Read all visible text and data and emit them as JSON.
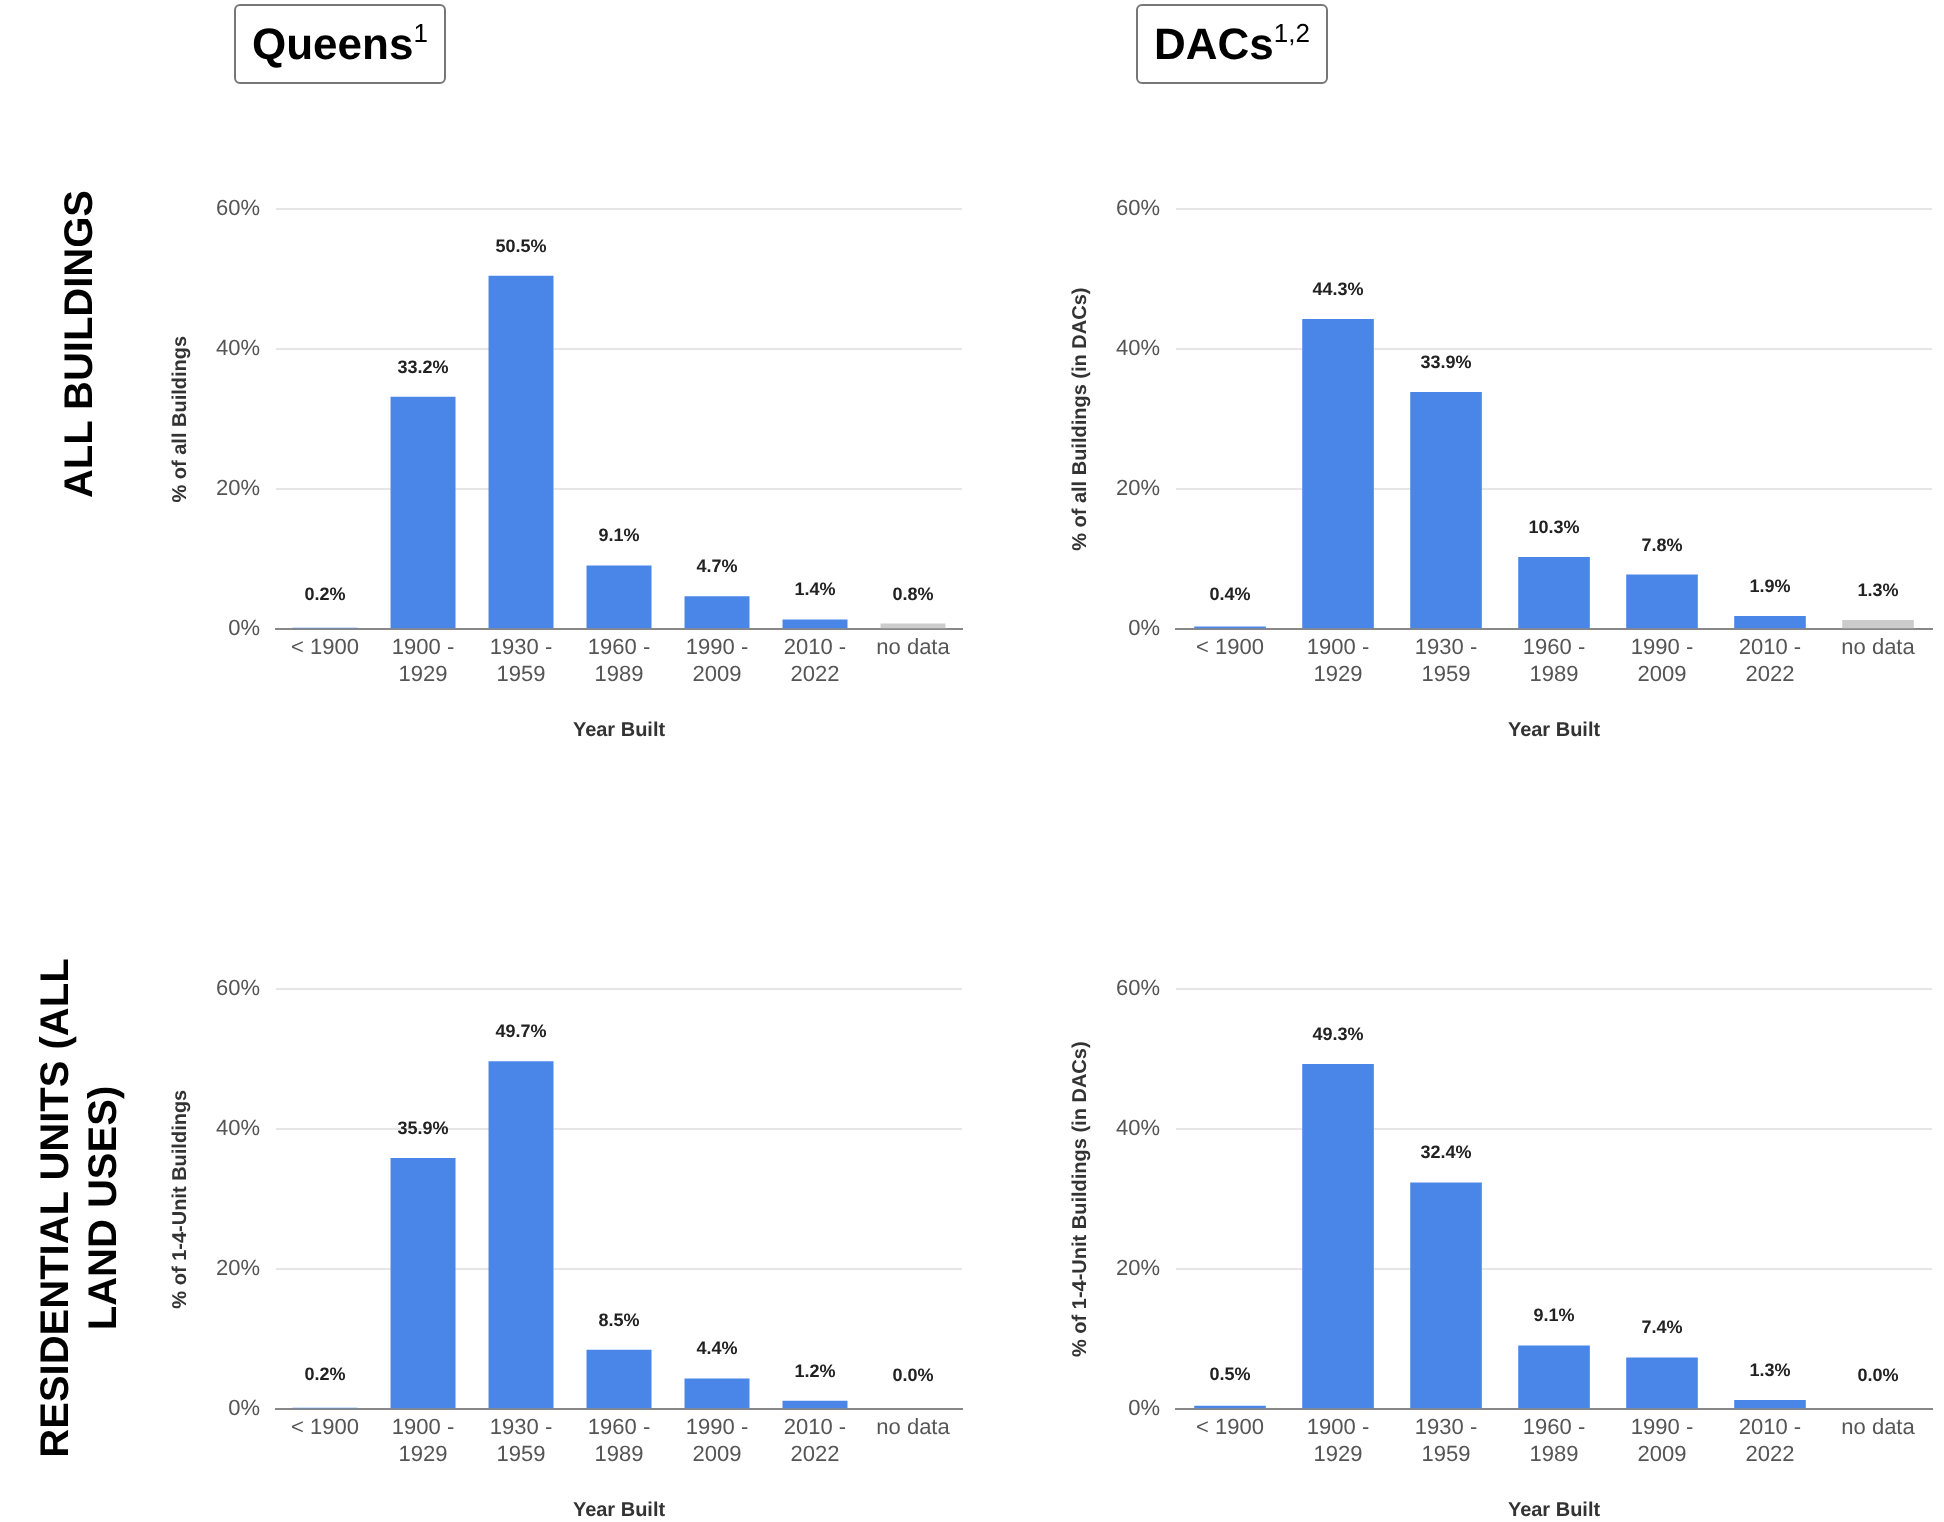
{
  "chart_data": [
    {
      "type": "bar",
      "title": "Queens$^{1}$",
      "subtitle": "ALL BUILDINGS",
      "xlabel": "Year Built",
      "ylabel": "% of all Buildings",
      "categories": [
        "< 1900",
        "1900 - 1929",
        "1930 - 1959",
        "1960 - 1989",
        "1990 - 2009",
        "2010 - 2022",
        "no data"
      ],
      "values": [
        0.2,
        33.2,
        50.5,
        9.1,
        4.7,
        1.4,
        0.8
      ],
      "colors": [
        "#4a86e8",
        "#4a86e8",
        "#4a86e8",
        "#4a86e8",
        "#4a86e8",
        "#4a86e8",
        "#cccccc"
      ],
      "value_labels": [
        "0.2%",
        "33.2%",
        "50.5%",
        "9.1%",
        "4.7%",
        "1.4%",
        "0.8%"
      ],
      "ylim": [
        0,
        60
      ],
      "yticks": [
        {
          "value": 0,
          "label": "0%"
        },
        {
          "value": 20,
          "label": "20%"
        },
        {
          "value": 40,
          "label": "40%"
        },
        {
          "value": 60,
          "label": "60%"
        }
      ],
      "grid": "y"
    },
    {
      "type": "bar",
      "title": "DACs$^{1,2}$",
      "xlabel": "Year Built",
      "ylabel": "% of all Buildings (in DACs)",
      "categories": [
        "< 1900",
        "1900 - 1929",
        "1930 - 1959",
        "1960 - 1989",
        "1990 - 2009",
        "2010 - 2022",
        "no data"
      ],
      "values": [
        0.4,
        44.3,
        33.9,
        10.3,
        7.8,
        1.9,
        1.3
      ],
      "colors": [
        "#4a86e8",
        "#4a86e8",
        "#4a86e8",
        "#4a86e8",
        "#4a86e8",
        "#4a86e8",
        "#cccccc"
      ],
      "value_labels": [
        "0.4%",
        "44.3%",
        "33.9%",
        "10.3%",
        "7.8%",
        "1.9%",
        "1.3%"
      ],
      "ylim": [
        0,
        60
      ],
      "yticks": [
        {
          "value": 0,
          "label": "0%"
        },
        {
          "value": 20,
          "label": "20%"
        },
        {
          "value": 40,
          "label": "40%"
        },
        {
          "value": 60,
          "label": "60%"
        }
      ],
      "grid": "y"
    },
    {
      "type": "bar",
      "subtitle": "RESIDENTIAL UNITS (ALL LAND USES)",
      "xlabel": "Year Built",
      "ylabel": "% of 1-4-Unit Buildings",
      "categories": [
        "< 1900",
        "1900 - 1929",
        "1930 - 1959",
        "1960 - 1989",
        "1990 - 2009",
        "2010 - 2022",
        "no data"
      ],
      "values": [
        0.2,
        35.9,
        49.7,
        8.5,
        4.4,
        1.2,
        0.0
      ],
      "colors": [
        "#4a86e8",
        "#4a86e8",
        "#4a86e8",
        "#4a86e8",
        "#4a86e8",
        "#4a86e8",
        "#cccccc"
      ],
      "value_labels": [
        "0.2%",
        "35.9%",
        "49.7%",
        "8.5%",
        "4.4%",
        "1.2%",
        "0.0%"
      ],
      "ylim": [
        0,
        60
      ],
      "yticks": [
        {
          "value": 0,
          "label": "0%"
        },
        {
          "value": 20,
          "label": "20%"
        },
        {
          "value": 40,
          "label": "40%"
        },
        {
          "value": 60,
          "label": "60%"
        }
      ],
      "grid": "y"
    },
    {
      "type": "bar",
      "xlabel": "Year Built",
      "ylabel": "% of 1-4-Unit Buildings (in DACs)",
      "categories": [
        "< 1900",
        "1900 - 1929",
        "1930 - 1959",
        "1960 - 1989",
        "1990 - 2009",
        "2010 - 2022",
        "no data"
      ],
      "values": [
        0.5,
        49.3,
        32.4,
        9.1,
        7.4,
        1.3,
        0.0
      ],
      "colors": [
        "#4a86e8",
        "#4a86e8",
        "#4a86e8",
        "#4a86e8",
        "#4a86e8",
        "#4a86e8",
        "#cccccc"
      ],
      "value_labels": [
        "0.5%",
        "49.3%",
        "32.4%",
        "9.1%",
        "7.4%",
        "1.3%",
        "0.0%"
      ],
      "ylim": [
        0,
        60
      ],
      "yticks": [
        {
          "value": 0,
          "label": "0%"
        },
        {
          "value": 20,
          "label": "20%"
        },
        {
          "value": 40,
          "label": "40%"
        },
        {
          "value": 60,
          "label": "60%"
        }
      ],
      "grid": "y"
    }
  ]
}
